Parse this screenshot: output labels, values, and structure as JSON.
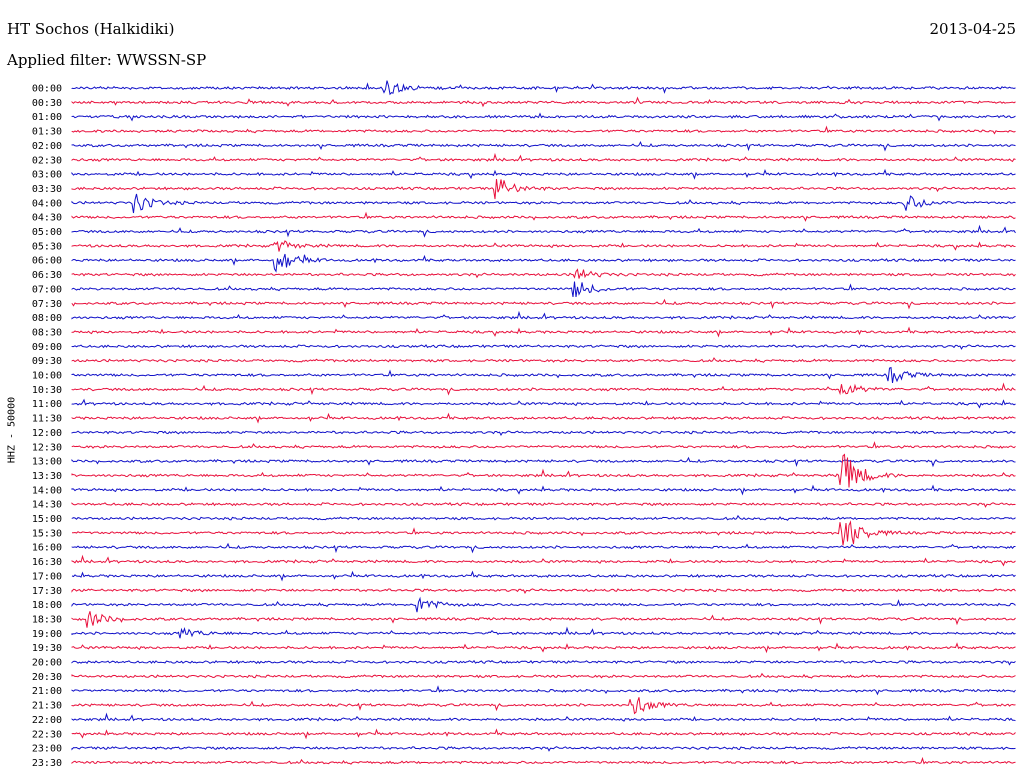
{
  "header": {
    "station": "HT Sochos (Halkidiki)",
    "date": "2013-04-25",
    "filter_text": "Applied filter: WWSSN-SP"
  },
  "axis": {
    "ylabel": "HHZ - 50000"
  },
  "colors": {
    "even_trace": "#1010c8",
    "odd_trace": "#e8103c"
  },
  "chart_data": {
    "type": "line",
    "title": "",
    "row_labels": [
      "00:00",
      "00:30",
      "01:00",
      "01:30",
      "02:00",
      "02:30",
      "03:00",
      "03:30",
      "04:00",
      "04:30",
      "05:00",
      "05:30",
      "06:00",
      "06:30",
      "07:00",
      "07:30",
      "08:00",
      "08:30",
      "09:00",
      "09:30",
      "10:00",
      "10:30",
      "11:00",
      "11:30",
      "12:00",
      "12:30",
      "13:00",
      "13:30",
      "14:00",
      "14:30",
      "15:00",
      "15:30",
      "16:00",
      "16:30",
      "17:00",
      "17:30",
      "18:00",
      "18:30",
      "19:00",
      "19:30",
      "20:00",
      "20:30",
      "21:00",
      "21:30",
      "22:00",
      "22:30",
      "23:00",
      "23:30"
    ],
    "minutes_per_row": 30,
    "grid": false,
    "events": [
      {
        "row": 0,
        "minute": 10,
        "amp": 8
      },
      {
        "row": 7,
        "minute": 13.5,
        "amp": 12
      },
      {
        "row": 8,
        "minute": 2,
        "amp": 10
      },
      {
        "row": 8,
        "minute": 26.5,
        "amp": 9
      },
      {
        "row": 11,
        "minute": 6.5,
        "amp": 6
      },
      {
        "row": 12,
        "minute": 6.5,
        "amp": 14
      },
      {
        "row": 13,
        "minute": 16,
        "amp": 7
      },
      {
        "row": 14,
        "minute": 16,
        "amp": 9
      },
      {
        "row": 20,
        "minute": 26,
        "amp": 8
      },
      {
        "row": 21,
        "minute": 24.5,
        "amp": 7
      },
      {
        "row": 27,
        "minute": 24.5,
        "amp": 25
      },
      {
        "row": 31,
        "minute": 24.5,
        "amp": 22
      },
      {
        "row": 37,
        "minute": 0.5,
        "amp": 9
      },
      {
        "row": 43,
        "minute": 17.8,
        "amp": 12
      },
      {
        "row": 38,
        "minute": 3.5,
        "amp": 5
      },
      {
        "row": 36,
        "minute": 11,
        "amp": 8
      }
    ]
  }
}
